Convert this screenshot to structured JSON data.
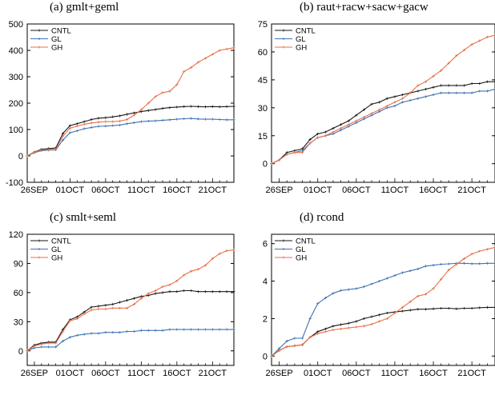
{
  "colors": {
    "CNTL": "#1a1a1a",
    "GL": "#3d72b4",
    "GH": "#e8704a"
  },
  "x_ticks": [
    "26SEP",
    "01OCT",
    "06OCT",
    "11OCT",
    "16OCT",
    "21OCT"
  ],
  "chart_data": [
    {
      "type": "line",
      "title": "(a) gmlt+geml",
      "xlabel": "",
      "ylabel": "",
      "x_ticks": [
        "26SEP",
        "01OCT",
        "06OCT",
        "11OCT",
        "16OCT",
        "21OCT"
      ],
      "ylim": [
        -100,
        500
      ],
      "yticks": [
        -100,
        0,
        100,
        200,
        300,
        400,
        500
      ],
      "legend": "top-left",
      "series": [
        {
          "name": "CNTL",
          "values": [
            0,
            15,
            25,
            28,
            30,
            85,
            115,
            122,
            130,
            138,
            143,
            145,
            148,
            152,
            158,
            163,
            168,
            172,
            176,
            180,
            183,
            185,
            187,
            188,
            187,
            186,
            187,
            186,
            187,
            188
          ]
        },
        {
          "name": "GL",
          "values": [
            0,
            12,
            20,
            22,
            23,
            60,
            88,
            95,
            103,
            108,
            112,
            113,
            115,
            117,
            122,
            126,
            130,
            132,
            133,
            135,
            137,
            139,
            141,
            142,
            140,
            139,
            139,
            138,
            137,
            137
          ]
        },
        {
          "name": "GH",
          "values": [
            0,
            14,
            22,
            24,
            25,
            75,
            105,
            113,
            120,
            125,
            128,
            130,
            130,
            132,
            138,
            155,
            175,
            200,
            225,
            240,
            245,
            270,
            320,
            335,
            355,
            370,
            385,
            400,
            405,
            410
          ]
        }
      ]
    },
    {
      "type": "line",
      "title": "(b) raut+racw+sacw+gacw",
      "xlabel": "",
      "ylabel": "",
      "x_ticks": [
        "26SEP",
        "01OCT",
        "06OCT",
        "11OCT",
        "16OCT",
        "21OCT"
      ],
      "ylim": [
        -10,
        75
      ],
      "yticks": [
        0,
        15,
        30,
        45,
        60,
        75
      ],
      "legend": "top-left",
      "series": [
        {
          "name": "CNTL",
          "values": [
            0,
            2,
            6,
            7,
            8,
            13,
            16,
            17,
            19,
            21,
            23,
            26,
            29,
            32,
            33,
            35,
            36,
            37,
            38,
            39,
            40,
            41,
            42,
            42,
            42,
            42,
            43,
            43,
            44,
            44
          ]
        },
        {
          "name": "GL",
          "values": [
            0,
            2,
            5,
            6,
            7,
            11,
            14,
            15,
            16,
            18,
            20,
            22,
            24,
            26,
            28,
            30,
            31,
            33,
            34,
            35,
            36,
            37,
            38,
            38,
            38,
            38,
            38,
            39,
            39,
            40
          ]
        },
        {
          "name": "GH",
          "values": [
            0,
            2,
            5,
            6,
            6,
            11,
            14,
            15,
            17,
            19,
            21,
            23,
            25,
            27,
            29,
            31,
            33,
            35,
            38,
            42,
            44,
            47,
            50,
            54,
            58,
            61,
            64,
            66,
            68,
            69
          ]
        }
      ]
    },
    {
      "type": "line",
      "title": "(c) smlt+seml",
      "xlabel": "",
      "ylabel": "",
      "x_ticks": [
        "26SEP",
        "01OCT",
        "06OCT",
        "11OCT",
        "16OCT",
        "21OCT"
      ],
      "ylim": [
        -15,
        120
      ],
      "yticks": [
        0,
        30,
        60,
        90,
        120
      ],
      "legend": "top-left",
      "series": [
        {
          "name": "CNTL",
          "values": [
            0,
            6,
            8,
            9,
            9,
            22,
            32,
            35,
            40,
            45,
            46,
            47,
            48,
            50,
            52,
            54,
            56,
            57,
            59,
            60,
            61,
            61,
            62,
            62,
            61,
            61,
            61,
            61,
            61,
            61
          ]
        },
        {
          "name": "GL",
          "values": [
            0,
            3,
            4,
            4,
            4,
            10,
            14,
            16,
            17,
            18,
            18,
            19,
            19,
            19,
            20,
            20,
            21,
            21,
            21,
            21,
            22,
            22,
            22,
            22,
            22,
            22,
            22,
            22,
            22,
            22
          ]
        },
        {
          "name": "GH",
          "values": [
            0,
            5,
            7,
            8,
            8,
            20,
            31,
            33,
            38,
            42,
            43,
            43,
            44,
            44,
            44,
            48,
            54,
            59,
            62,
            66,
            68,
            72,
            78,
            82,
            84,
            88,
            95,
            100,
            103,
            104
          ]
        }
      ]
    },
    {
      "type": "line",
      "title": "(d) rcond",
      "xlabel": "",
      "ylabel": "",
      "x_ticks": [
        "26SEP",
        "01OCT",
        "06OCT",
        "11OCT",
        "16OCT",
        "21OCT"
      ],
      "ylim": [
        -0.5,
        6.5
      ],
      "yticks": [
        0,
        2,
        4,
        6
      ],
      "legend": "top-left",
      "series": [
        {
          "name": "CNTL",
          "values": [
            0,
            0.3,
            0.5,
            0.55,
            0.6,
            1.0,
            1.3,
            1.45,
            1.6,
            1.68,
            1.75,
            1.85,
            2.0,
            2.1,
            2.2,
            2.3,
            2.35,
            2.4,
            2.45,
            2.5,
            2.5,
            2.52,
            2.55,
            2.55,
            2.52,
            2.55,
            2.55,
            2.58,
            2.6,
            2.6
          ]
        },
        {
          "name": "GL",
          "values": [
            0,
            0.4,
            0.8,
            0.95,
            0.95,
            2.0,
            2.8,
            3.1,
            3.35,
            3.5,
            3.55,
            3.6,
            3.7,
            3.85,
            4.0,
            4.15,
            4.3,
            4.45,
            4.55,
            4.65,
            4.8,
            4.85,
            4.9,
            4.92,
            4.95,
            4.95,
            4.93,
            4.93,
            4.95,
            4.95
          ]
        },
        {
          "name": "GH",
          "values": [
            0,
            0.3,
            0.5,
            0.55,
            0.6,
            1.0,
            1.2,
            1.3,
            1.4,
            1.45,
            1.5,
            1.55,
            1.6,
            1.7,
            1.85,
            2.0,
            2.3,
            2.6,
            2.9,
            3.2,
            3.3,
            3.6,
            4.1,
            4.6,
            4.9,
            5.2,
            5.45,
            5.6,
            5.7,
            5.8
          ]
        }
      ]
    }
  ]
}
